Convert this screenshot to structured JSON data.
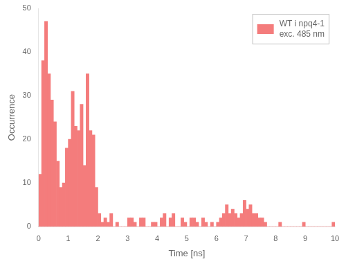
{
  "chart_data": {
    "type": "histogram",
    "xlabel": "Time [ns]",
    "ylabel": "Occurrence",
    "bins": [
      0,
      0.1,
      0.2,
      0.3,
      0.4,
      0.5,
      0.6,
      0.7,
      0.8,
      0.9,
      1,
      1.1,
      1.2,
      1.3,
      1.4,
      1.5,
      1.6,
      1.7,
      1.8,
      1.9,
      2,
      2.1,
      2.2,
      2.3,
      2.4,
      2.5,
      2.6,
      2.7,
      2.8,
      2.9,
      3,
      3.1,
      3.2,
      3.3,
      3.4,
      3.5,
      3.6,
      3.7,
      3.8,
      3.9,
      4,
      4.1,
      4.2,
      4.3,
      4.4,
      4.5,
      4.6,
      4.7,
      4.8,
      4.9,
      5,
      5.1,
      5.2,
      5.3,
      5.4,
      5.5,
      5.6,
      5.7,
      5.8,
      5.9,
      6,
      6.1,
      6.2,
      6.3,
      6.4,
      6.5,
      6.6,
      6.7,
      6.8,
      6.9,
      7,
      7.1,
      7.2,
      7.3,
      7.4,
      7.5,
      7.6,
      7.7,
      7.8,
      7.9,
      8,
      8.1,
      8.2,
      8.3,
      8.4,
      8.5,
      8.6,
      8.7,
      8.8,
      8.9,
      9,
      9.1,
      9.2,
      9.3,
      9.4,
      9.5,
      9.6,
      9.7,
      9.8,
      9.9,
      10
    ],
    "series": [
      {
        "name": "WT i npq4-1\nexc. 485 nm",
        "color": "#f47c7c",
        "values": [
          12,
          38,
          47,
          35,
          29,
          24,
          15,
          9,
          10,
          18,
          20,
          31,
          23,
          22,
          28,
          14,
          35,
          22,
          21,
          9,
          3,
          1,
          2,
          1,
          3,
          0,
          1,
          0,
          0,
          0,
          2,
          2,
          1,
          0,
          2,
          2,
          0,
          0,
          1,
          1,
          0,
          2,
          3,
          0,
          2,
          3,
          0,
          0,
          2,
          1,
          0,
          2,
          2,
          1,
          0,
          2,
          1,
          0,
          1,
          0,
          1,
          2,
          3,
          5,
          3,
          4,
          3,
          2,
          3,
          6,
          4,
          5,
          3,
          3,
          2,
          2,
          1,
          0,
          0,
          0,
          0,
          1,
          0,
          0,
          0,
          0,
          0,
          0,
          0,
          1,
          0,
          0,
          0,
          0,
          0,
          0,
          0,
          0,
          0,
          1
        ]
      }
    ],
    "xlim": [
      0,
      10
    ],
    "ylim": [
      0,
      50
    ],
    "xticks": [
      0,
      1,
      2,
      3,
      4,
      5,
      6,
      7,
      8,
      9,
      10
    ],
    "yticks": [
      0,
      10,
      20,
      30,
      40,
      50
    ],
    "grid": false,
    "legend": "upper right"
  }
}
